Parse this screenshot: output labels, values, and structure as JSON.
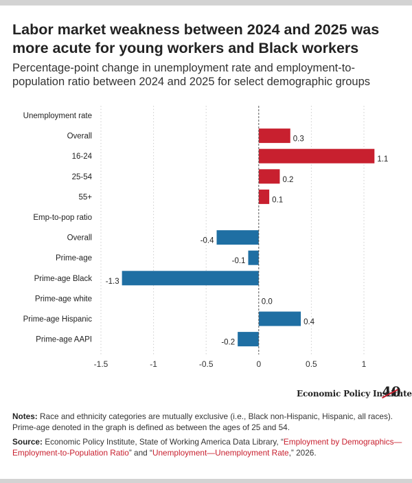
{
  "title": "Labor market weakness between 2024 and 2025 was more acute for young workers and Black workers",
  "subtitle": "Percentage-point change in unemployment rate and employment-to-population ratio between 2024 and 2025 for select demographic groups",
  "colors": {
    "unemployment": "#c8202f",
    "emp_to_pop": "#1f6fa3",
    "grid": "#cccccc",
    "zero_line": "#555555"
  },
  "chart_data": {
    "type": "bar",
    "orientation": "horizontal",
    "title": "",
    "xlabel": "",
    "ylabel": "",
    "xlim": [
      -1.5,
      1.0
    ],
    "x_ticks": [
      -1.5,
      -1,
      -0.5,
      0,
      0.5,
      1
    ],
    "x_tick_labels": [
      "-1.5",
      "-1",
      "-0.5",
      "0",
      "0.5",
      "1"
    ],
    "grid": true,
    "categories": [
      "Unemployment rate",
      "Overall",
      "16-24",
      "25-54",
      "55+",
      "Emp-to-pop ratio",
      "Overall",
      "Prime-age",
      "Prime-age Black",
      "Prime-age white",
      "Prime-age Hispanic",
      "Prime-age AAPI"
    ],
    "values": [
      null,
      0.3,
      1.1,
      0.2,
      0.1,
      null,
      -0.4,
      -0.1,
      -1.3,
      0.0,
      0.4,
      -0.2
    ],
    "value_labels": [
      "",
      "0.3",
      "1.1",
      "0.2",
      "0.1",
      "",
      "-0.4",
      "-0.1",
      "-1.3",
      "0.0",
      "0.4",
      "-0.2"
    ],
    "groups": [
      "header",
      "unemployment",
      "unemployment",
      "unemployment",
      "unemployment",
      "header",
      "emp_to_pop",
      "emp_to_pop",
      "emp_to_pop",
      "emp_to_pop",
      "emp_to_pop",
      "emp_to_pop"
    ]
  },
  "brand": {
    "name": "Economic Policy Institute",
    "mark": "40"
  },
  "notes": {
    "label": "Notes:",
    "text": " Race and ethnicity categories are mutually exclusive (i.e., Black non-Hispanic, Hispanic, all races). Prime-age denoted in the graph is defined as between the ages of 25 and 54."
  },
  "source": {
    "label": "Source:",
    "text1": " Economic Policy Institute, State of Working America Data Library, “",
    "link1": "Employment by Demographics—Employment-to-Population Ratio",
    "text2": "” and “",
    "link2": "Unemployment—Unemployment Rate",
    "text3": ",” 2026."
  }
}
